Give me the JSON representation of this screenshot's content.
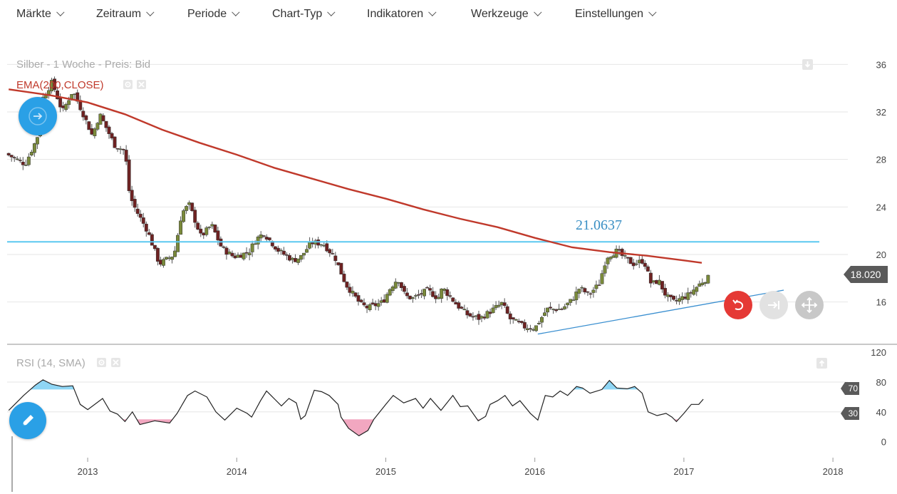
{
  "menu": [
    {
      "id": "maerkte",
      "label": "Märkte"
    },
    {
      "id": "zeitraum",
      "label": "Zeitraum"
    },
    {
      "id": "periode",
      "label": "Periode"
    },
    {
      "id": "chart-typ",
      "label": "Chart-Typ"
    },
    {
      "id": "indikatoren",
      "label": "Indikatoren"
    },
    {
      "id": "werkzeuge",
      "label": "Werkzeuge"
    },
    {
      "id": "einstellungen",
      "label": "Einstellungen"
    }
  ],
  "chart": {
    "title": "Silber - 1 Woche - Preis: Bid",
    "ema_label": "EMA(200,CLOSE)",
    "rsi_label": "RSI (14, SMA)",
    "current_price": "18.020",
    "resistance_label": "21.0637",
    "rsi_upper_label": "70",
    "rsi_lower_label": "30"
  },
  "colors": {
    "ema": "#c0392b",
    "resistance": "#5bc8f0",
    "trendline": "#3a8fd0",
    "candle_up": "#7a8a3a",
    "candle_down": "#6e2222",
    "rsi_line": "#222222",
    "rsi_over": "#8fd6f5",
    "rsi_under": "#f2a7c0",
    "accent": "#2aa0e6"
  },
  "icons": [
    "chevron-down-icon",
    "arrow-right-icon",
    "pencil-icon",
    "undo-icon",
    "extend-icon",
    "move-icon",
    "gear-icon",
    "close-icon",
    "download-icon",
    "upload-icon"
  ],
  "chart_data": {
    "type": "candlestick",
    "title": "Silber - 1 Woche - Preis: Bid",
    "price_axis": {
      "ticks": [
        16,
        20,
        24,
        28,
        32,
        36
      ],
      "ylim": [
        12.5,
        36.5
      ]
    },
    "rsi_axis": {
      "ticks": [
        0,
        40,
        80,
        120
      ],
      "ylim": [
        -8,
        122
      ],
      "levels": [
        30,
        70
      ]
    },
    "x_axis": {
      "tick_labels": [
        "2013",
        "2014",
        "2015",
        "2016",
        "2017",
        "2018"
      ],
      "xlim": [
        2012.45,
        2018.1
      ]
    },
    "resistance": {
      "value": 21.0637
    },
    "trendline": [
      {
        "x": 2016.02,
        "y": 13.3
      },
      {
        "x": 2017.67,
        "y": 17.0
      }
    ],
    "ema200": [
      {
        "x": 2012.47,
        "y": 33.9
      },
      {
        "x": 2012.75,
        "y": 33.4
      },
      {
        "x": 2013.0,
        "y": 32.8
      },
      {
        "x": 2013.25,
        "y": 31.8
      },
      {
        "x": 2013.5,
        "y": 30.5
      },
      {
        "x": 2013.75,
        "y": 29.4
      },
      {
        "x": 2014.0,
        "y": 28.4
      },
      {
        "x": 2014.25,
        "y": 27.3
      },
      {
        "x": 2014.5,
        "y": 26.4
      },
      {
        "x": 2014.75,
        "y": 25.5
      },
      {
        "x": 2015.0,
        "y": 24.7
      },
      {
        "x": 2015.25,
        "y": 23.8
      },
      {
        "x": 2015.5,
        "y": 23.0
      },
      {
        "x": 2015.75,
        "y": 22.3
      },
      {
        "x": 2016.0,
        "y": 21.4
      },
      {
        "x": 2016.25,
        "y": 20.6
      },
      {
        "x": 2016.5,
        "y": 20.2
      },
      {
        "x": 2016.75,
        "y": 19.9
      },
      {
        "x": 2017.0,
        "y": 19.5
      },
      {
        "x": 2017.12,
        "y": 19.3
      }
    ],
    "price_path": [
      {
        "x": 2012.47,
        "y": 28.5
      },
      {
        "x": 2012.6,
        "y": 27.6
      },
      {
        "x": 2012.68,
        "y": 29.8
      },
      {
        "x": 2012.72,
        "y": 33.2
      },
      {
        "x": 2012.78,
        "y": 34.5
      },
      {
        "x": 2012.85,
        "y": 32.0
      },
      {
        "x": 2012.92,
        "y": 33.8
      },
      {
        "x": 2013.0,
        "y": 31.5
      },
      {
        "x": 2013.05,
        "y": 30.0
      },
      {
        "x": 2013.1,
        "y": 31.8
      },
      {
        "x": 2013.15,
        "y": 30.5
      },
      {
        "x": 2013.2,
        "y": 29.2
      },
      {
        "x": 2013.27,
        "y": 28.7
      },
      {
        "x": 2013.3,
        "y": 25.0
      },
      {
        "x": 2013.34,
        "y": 23.8
      },
      {
        "x": 2013.42,
        "y": 22.0
      },
      {
        "x": 2013.5,
        "y": 19.2
      },
      {
        "x": 2013.6,
        "y": 20.0
      },
      {
        "x": 2013.65,
        "y": 23.5
      },
      {
        "x": 2013.7,
        "y": 24.2
      },
      {
        "x": 2013.78,
        "y": 21.5
      },
      {
        "x": 2013.85,
        "y": 22.5
      },
      {
        "x": 2013.92,
        "y": 20.5
      },
      {
        "x": 2014.0,
        "y": 19.8
      },
      {
        "x": 2014.1,
        "y": 20.2
      },
      {
        "x": 2014.15,
        "y": 21.3
      },
      {
        "x": 2014.2,
        "y": 21.8
      },
      {
        "x": 2014.3,
        "y": 20.3
      },
      {
        "x": 2014.4,
        "y": 19.5
      },
      {
        "x": 2014.45,
        "y": 19.8
      },
      {
        "x": 2014.52,
        "y": 21.0
      },
      {
        "x": 2014.6,
        "y": 20.9
      },
      {
        "x": 2014.68,
        "y": 19.7
      },
      {
        "x": 2014.75,
        "y": 17.5
      },
      {
        "x": 2014.85,
        "y": 15.8
      },
      {
        "x": 2014.9,
        "y": 15.5
      },
      {
        "x": 2015.0,
        "y": 16.0
      },
      {
        "x": 2015.05,
        "y": 17.2
      },
      {
        "x": 2015.1,
        "y": 18.0
      },
      {
        "x": 2015.15,
        "y": 16.5
      },
      {
        "x": 2015.2,
        "y": 16.3
      },
      {
        "x": 2015.3,
        "y": 17.0
      },
      {
        "x": 2015.37,
        "y": 16.3
      },
      {
        "x": 2015.4,
        "y": 17.2
      },
      {
        "x": 2015.5,
        "y": 15.7
      },
      {
        "x": 2015.57,
        "y": 14.9
      },
      {
        "x": 2015.65,
        "y": 14.6
      },
      {
        "x": 2015.72,
        "y": 15.2
      },
      {
        "x": 2015.8,
        "y": 15.9
      },
      {
        "x": 2015.85,
        "y": 14.6
      },
      {
        "x": 2015.95,
        "y": 13.9
      },
      {
        "x": 2016.02,
        "y": 13.8
      },
      {
        "x": 2016.1,
        "y": 15.4
      },
      {
        "x": 2016.2,
        "y": 15.4
      },
      {
        "x": 2016.27,
        "y": 16.2
      },
      {
        "x": 2016.32,
        "y": 17.2
      },
      {
        "x": 2016.38,
        "y": 16.6
      },
      {
        "x": 2016.45,
        "y": 17.5
      },
      {
        "x": 2016.5,
        "y": 19.8
      },
      {
        "x": 2016.57,
        "y": 20.3
      },
      {
        "x": 2016.62,
        "y": 19.7
      },
      {
        "x": 2016.68,
        "y": 19.2
      },
      {
        "x": 2016.75,
        "y": 19.5
      },
      {
        "x": 2016.8,
        "y": 17.5
      },
      {
        "x": 2016.85,
        "y": 17.8
      },
      {
        "x": 2016.9,
        "y": 16.5
      },
      {
        "x": 2016.95,
        "y": 16.0
      },
      {
        "x": 2017.0,
        "y": 16.3
      },
      {
        "x": 2017.05,
        "y": 16.6
      },
      {
        "x": 2017.1,
        "y": 17.2
      },
      {
        "x": 2017.15,
        "y": 17.8
      },
      {
        "x": 2017.18,
        "y": 18.02
      }
    ],
    "rsi_path": [
      {
        "x": 2012.47,
        "y": 42
      },
      {
        "x": 2012.5,
        "y": 48
      },
      {
        "x": 2012.57,
        "y": 62
      },
      {
        "x": 2012.65,
        "y": 76
      },
      {
        "x": 2012.7,
        "y": 83
      },
      {
        "x": 2012.76,
        "y": 77
      },
      {
        "x": 2012.83,
        "y": 74
      },
      {
        "x": 2012.9,
        "y": 75
      },
      {
        "x": 2012.95,
        "y": 50
      },
      {
        "x": 2013.0,
        "y": 43
      },
      {
        "x": 2013.1,
        "y": 58
      },
      {
        "x": 2013.15,
        "y": 41
      },
      {
        "x": 2013.2,
        "y": 37
      },
      {
        "x": 2013.25,
        "y": 27
      },
      {
        "x": 2013.3,
        "y": 40
      },
      {
        "x": 2013.35,
        "y": 23
      },
      {
        "x": 2013.45,
        "y": 28
      },
      {
        "x": 2013.55,
        "y": 25
      },
      {
        "x": 2013.6,
        "y": 38
      },
      {
        "x": 2013.67,
        "y": 62
      },
      {
        "x": 2013.72,
        "y": 68
      },
      {
        "x": 2013.8,
        "y": 60
      },
      {
        "x": 2013.86,
        "y": 40
      },
      {
        "x": 2013.92,
        "y": 29
      },
      {
        "x": 2014.0,
        "y": 45
      },
      {
        "x": 2014.07,
        "y": 38
      },
      {
        "x": 2014.1,
        "y": 33
      },
      {
        "x": 2014.16,
        "y": 55
      },
      {
        "x": 2014.2,
        "y": 68
      },
      {
        "x": 2014.25,
        "y": 58
      },
      {
        "x": 2014.3,
        "y": 48
      },
      {
        "x": 2014.35,
        "y": 58
      },
      {
        "x": 2014.4,
        "y": 52
      },
      {
        "x": 2014.43,
        "y": 30
      },
      {
        "x": 2014.46,
        "y": 35
      },
      {
        "x": 2014.52,
        "y": 69
      },
      {
        "x": 2014.57,
        "y": 67
      },
      {
        "x": 2014.62,
        "y": 62
      },
      {
        "x": 2014.68,
        "y": 50
      },
      {
        "x": 2014.7,
        "y": 33
      },
      {
        "x": 2014.75,
        "y": 18
      },
      {
        "x": 2014.82,
        "y": 8
      },
      {
        "x": 2014.88,
        "y": 15
      },
      {
        "x": 2014.92,
        "y": 30
      },
      {
        "x": 2015.0,
        "y": 50
      },
      {
        "x": 2015.05,
        "y": 62
      },
      {
        "x": 2015.12,
        "y": 52
      },
      {
        "x": 2015.2,
        "y": 58
      },
      {
        "x": 2015.25,
        "y": 45
      },
      {
        "x": 2015.3,
        "y": 58
      },
      {
        "x": 2015.37,
        "y": 42
      },
      {
        "x": 2015.45,
        "y": 62
      },
      {
        "x": 2015.5,
        "y": 47
      },
      {
        "x": 2015.55,
        "y": 48
      },
      {
        "x": 2015.62,
        "y": 28
      },
      {
        "x": 2015.67,
        "y": 34
      },
      {
        "x": 2015.7,
        "y": 50
      },
      {
        "x": 2015.75,
        "y": 55
      },
      {
        "x": 2015.8,
        "y": 62
      },
      {
        "x": 2015.85,
        "y": 48
      },
      {
        "x": 2015.9,
        "y": 55
      },
      {
        "x": 2015.97,
        "y": 38
      },
      {
        "x": 2016.02,
        "y": 29
      },
      {
        "x": 2016.07,
        "y": 62
      },
      {
        "x": 2016.12,
        "y": 60
      },
      {
        "x": 2016.17,
        "y": 68
      },
      {
        "x": 2016.22,
        "y": 62
      },
      {
        "x": 2016.28,
        "y": 74
      },
      {
        "x": 2016.32,
        "y": 72
      },
      {
        "x": 2016.37,
        "y": 65
      },
      {
        "x": 2016.45,
        "y": 70
      },
      {
        "x": 2016.5,
        "y": 82
      },
      {
        "x": 2016.55,
        "y": 72
      },
      {
        "x": 2016.62,
        "y": 71
      },
      {
        "x": 2016.67,
        "y": 74
      },
      {
        "x": 2016.72,
        "y": 65
      },
      {
        "x": 2016.76,
        "y": 40
      },
      {
        "x": 2016.82,
        "y": 35
      },
      {
        "x": 2016.88,
        "y": 38
      },
      {
        "x": 2016.92,
        "y": 33
      },
      {
        "x": 2016.95,
        "y": 27
      },
      {
        "x": 2017.0,
        "y": 38
      },
      {
        "x": 2017.05,
        "y": 50
      },
      {
        "x": 2017.1,
        "y": 50
      },
      {
        "x": 2017.13,
        "y": 57
      }
    ]
  }
}
